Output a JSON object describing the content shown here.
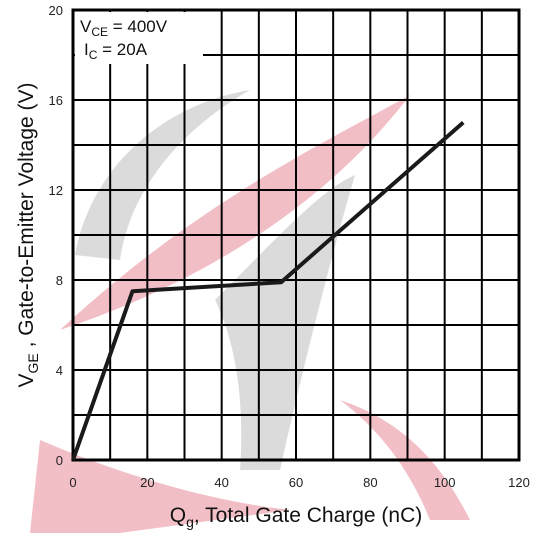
{
  "chart_data": {
    "type": "line",
    "xlabel": {
      "main": "Q",
      "sub": "g",
      "rest": ", Total Gate Charge (nC)"
    },
    "ylabel": {
      "main": "V",
      "sub": "GE",
      "rest": " , Gate-to-Emitter Voltage (V)"
    },
    "xlim": [
      0,
      120
    ],
    "ylim": [
      0,
      20
    ],
    "x_ticks": [
      "0",
      "20",
      "40",
      "60",
      "80",
      "100",
      "120"
    ],
    "y_ticks": [
      "0",
      "4",
      "8",
      "12",
      "16",
      "20"
    ],
    "grid": true,
    "annotations": {
      "vce": {
        "main": "V",
        "sub": "CE",
        "rest": " = 400V"
      },
      "ic": {
        "main": "I",
        "sub": "C",
        "rest": " = 20A"
      }
    },
    "series": [
      {
        "x": [
          0,
          16,
          56,
          105
        ],
        "y": [
          0,
          7.5,
          7.9,
          15
        ]
      }
    ],
    "colors": {
      "line": "#1a1a1a",
      "grid": "#000000",
      "watermark_red": "#d9485f",
      "watermark_gray": "#9a9a9a"
    }
  }
}
